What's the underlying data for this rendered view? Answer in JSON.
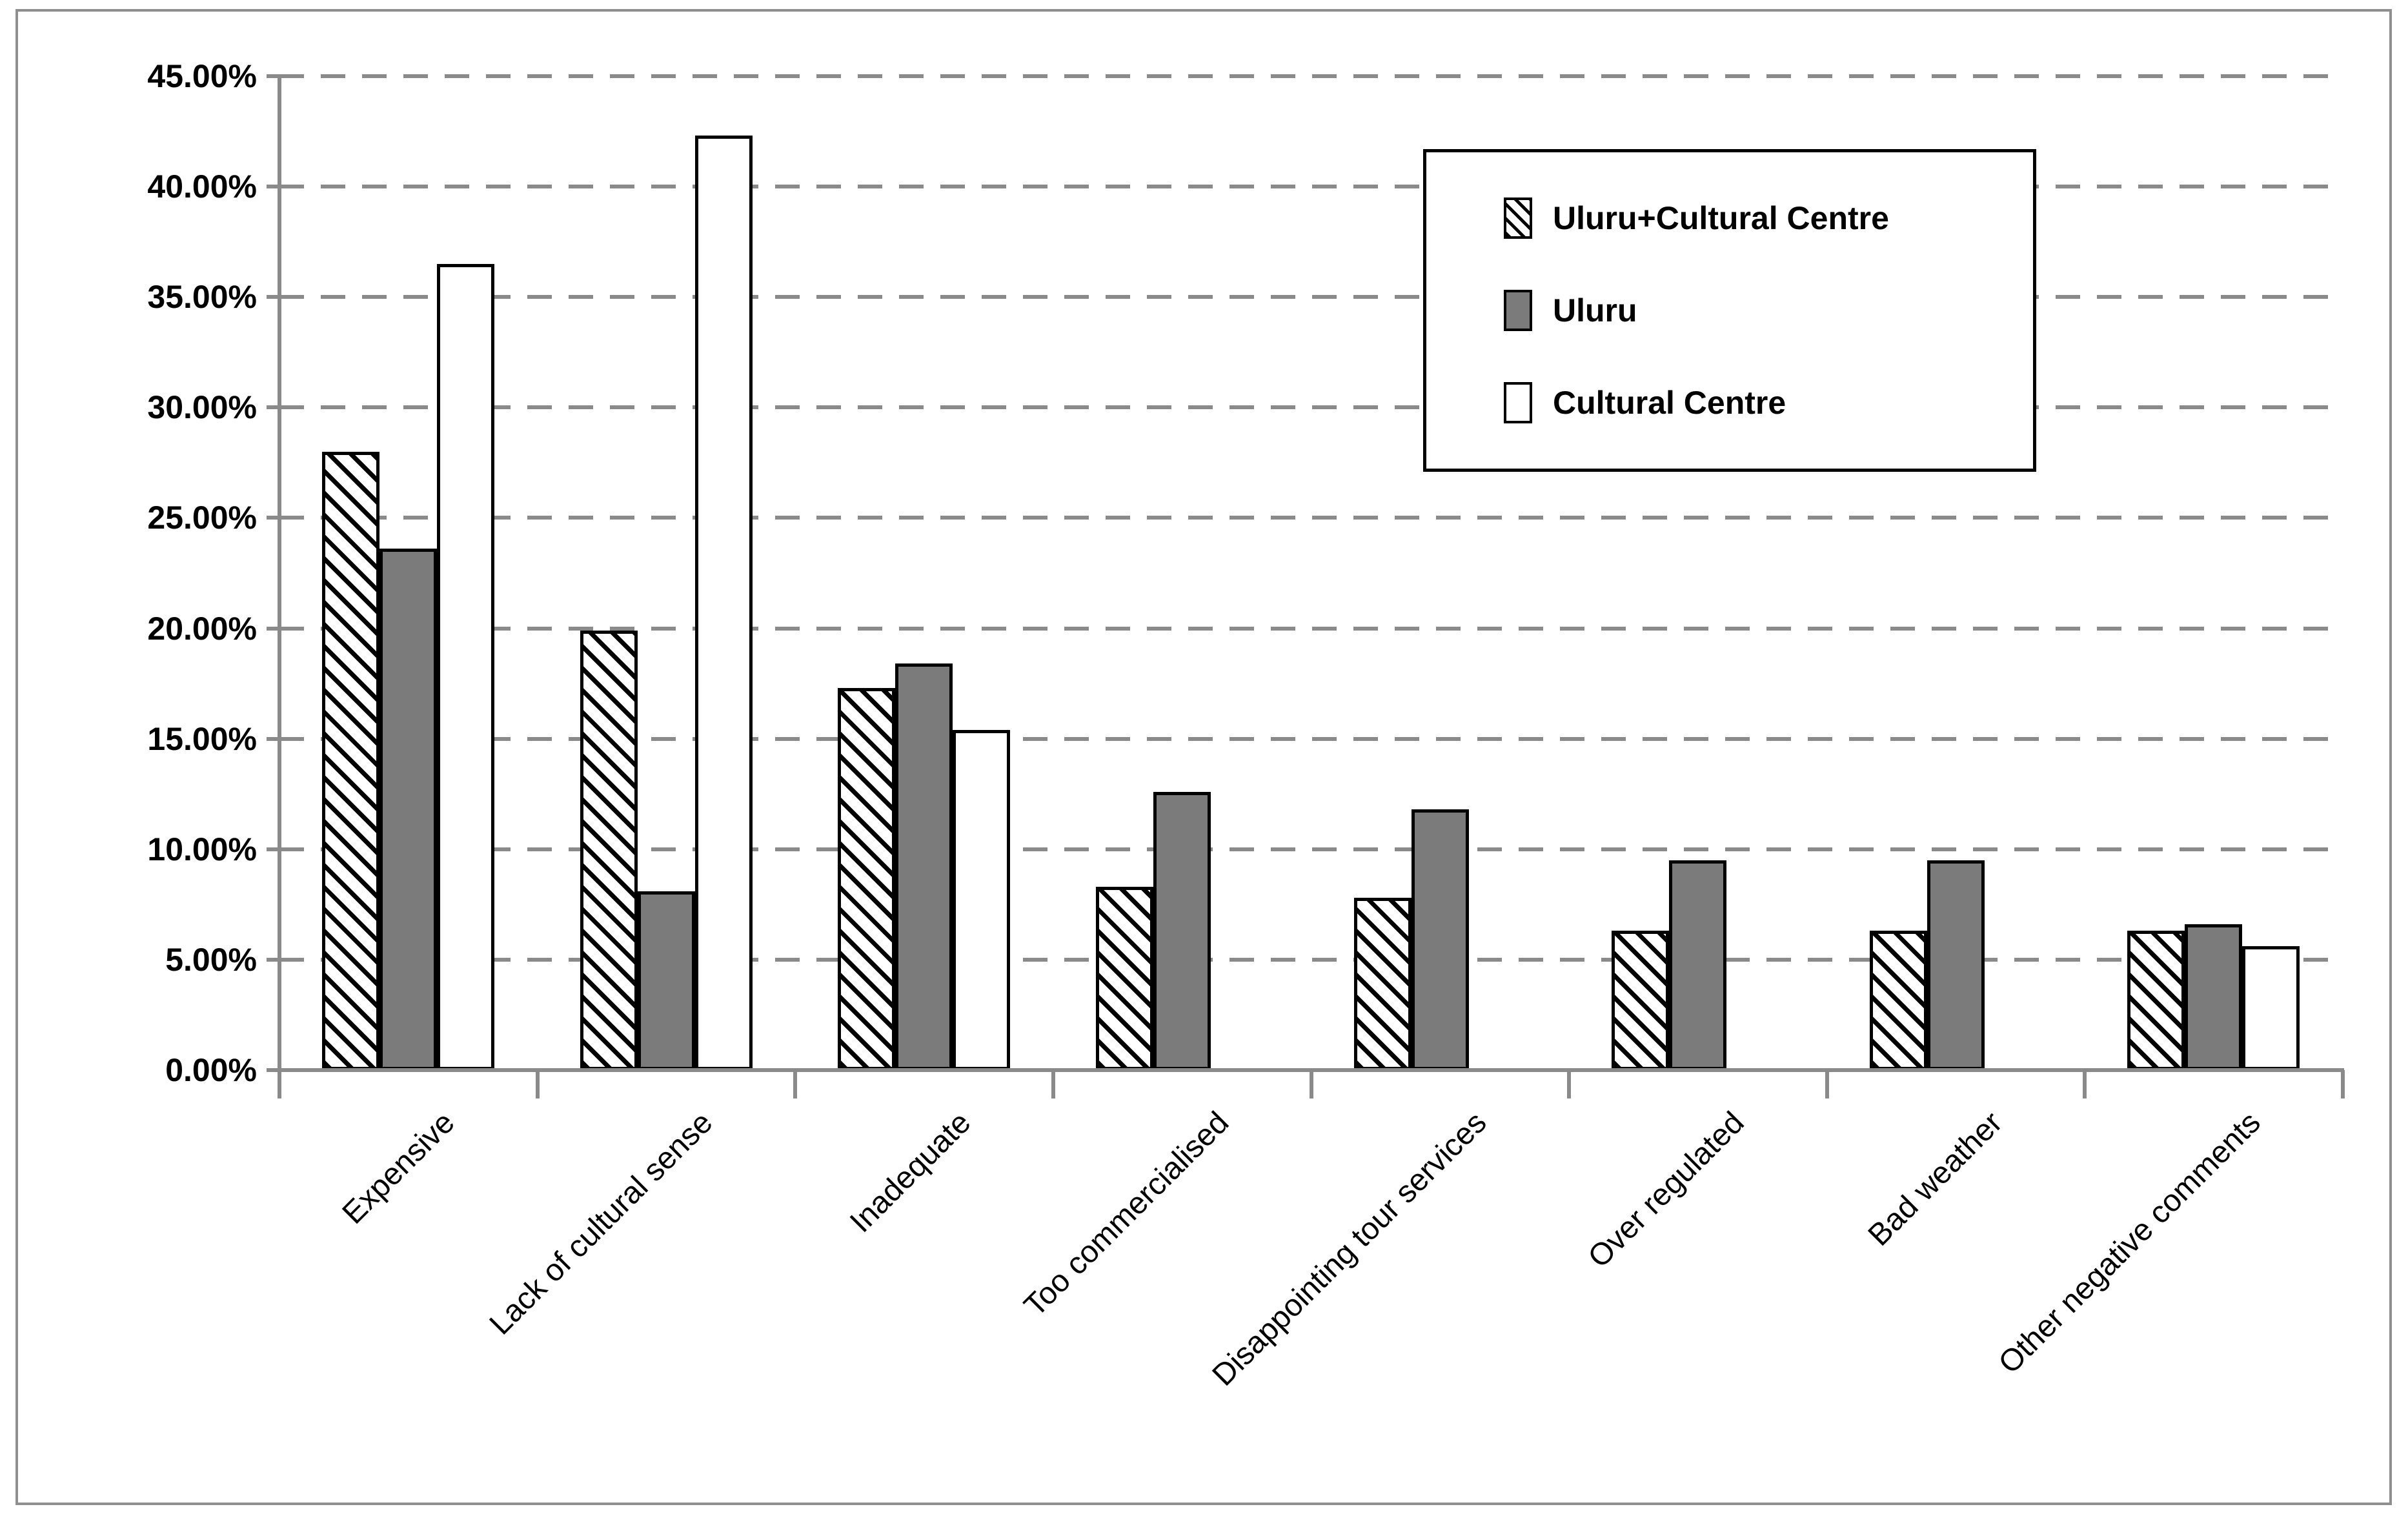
{
  "chart_data": {
    "type": "bar",
    "title": "",
    "xlabel": "",
    "ylabel": "",
    "categories": [
      "Expensive",
      "Lack of cultural sense",
      "Inadequate",
      "Too commercialised",
      "Disappointing tour services",
      "Over regulated",
      "Bad weather",
      "Other negative comments"
    ],
    "series": [
      {
        "name": "Uluru+Cultural Centre",
        "style": "hatched",
        "fill": "black diagonal hatch on white",
        "values": [
          28.0,
          19.9,
          17.3,
          8.3,
          7.8,
          6.3,
          6.3,
          6.3
        ]
      },
      {
        "name": "Uluru",
        "style": "solid-gray",
        "fill": "#7b7b7b",
        "values": [
          23.6,
          8.1,
          18.4,
          12.6,
          11.8,
          9.5,
          9.5,
          6.6
        ]
      },
      {
        "name": "Cultural Centre",
        "style": "white",
        "fill": "#ffffff",
        "values": [
          36.5,
          42.3,
          15.4,
          0,
          0,
          0,
          0,
          5.6
        ]
      }
    ],
    "ylim": [
      0,
      45
    ],
    "ytick_step": 5,
    "ytick_labels": [
      "45.00%",
      "40.00%",
      "35.00%",
      "30.00%",
      "25.00%",
      "20.00%",
      "15.00%",
      "10.00%",
      "5.00%",
      "0.00%"
    ],
    "grid": "horizontal dashed gray lines at every 5%",
    "legend_position": "upper right, inside plot, boxed"
  },
  "colors": {
    "background": "#ffffff",
    "bar_gray": "#7b7b7b",
    "bar_outline": "#000000",
    "axis_gray": "#8a8a8a",
    "grid_gray": "#8a8a8a",
    "frame_gray": "#8f8f8f",
    "text": "#000000"
  }
}
